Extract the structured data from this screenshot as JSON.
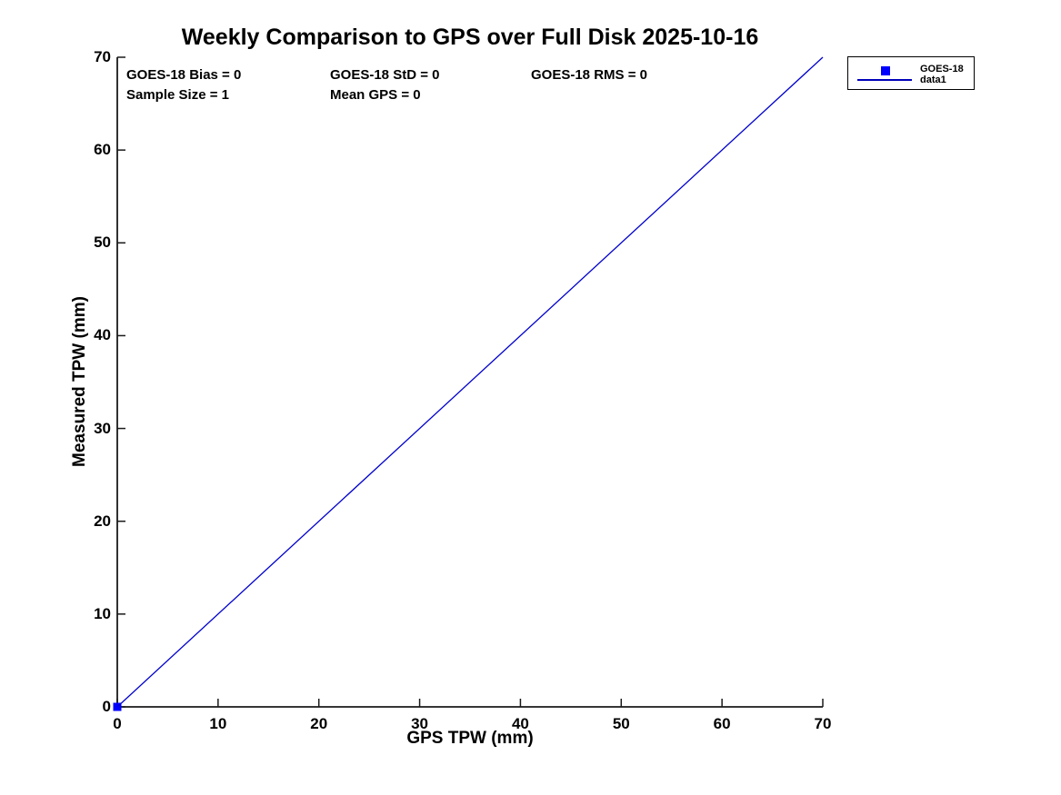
{
  "title": "Weekly Comparison to GPS over Full Disk 2025-10-16",
  "annotations": {
    "bias": "GOES-18 Bias = 0",
    "std": "GOES-18 StD = 0",
    "rms": "GOES-18 RMS = 0",
    "sample_size": "Sample Size = 1",
    "mean_gps": "Mean GPS = 0"
  },
  "legend": {
    "position": "upper-right-outside",
    "items": [
      {
        "label": "GOES-18",
        "swatch": "square-marker",
        "color": "#0000ff"
      },
      {
        "label": "data1",
        "swatch": "line",
        "color": "#0000bb"
      }
    ]
  },
  "chart_data": {
    "type": "scatter",
    "title": "Weekly Comparison to GPS over Full Disk 2025-10-16",
    "xlabel": "GPS TPW (mm)",
    "ylabel": "Measured TPW (mm)",
    "xlim": [
      0,
      70
    ],
    "ylim": [
      0,
      70
    ],
    "x_ticks": [
      0,
      10,
      20,
      30,
      40,
      50,
      60,
      70
    ],
    "y_ticks": [
      0,
      10,
      20,
      30,
      40,
      50,
      60,
      70
    ],
    "grid": false,
    "box": "left-bottom-spines-only",
    "legend_position": "upper-right-outside",
    "series": [
      {
        "name": "GOES-18",
        "type": "scatter",
        "marker": "square",
        "marker_size": 9,
        "color": "#0000ff",
        "points": [
          [
            0,
            0
          ]
        ]
      },
      {
        "name": "data1",
        "type": "line",
        "color": "#0000cc",
        "line_width": 1.3,
        "points": [
          [
            0,
            0
          ],
          [
            70,
            70
          ]
        ]
      }
    ]
  },
  "colors": {
    "background": "#ffffff",
    "axis": "#1a1a1a",
    "text": "#000000",
    "marker_blue": "#0000ff",
    "line_blue": "#0000cc"
  }
}
